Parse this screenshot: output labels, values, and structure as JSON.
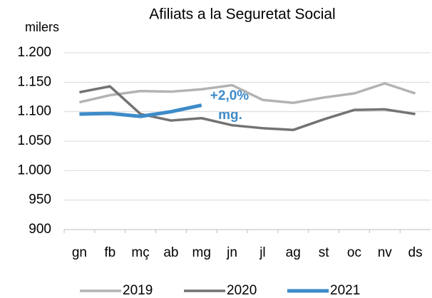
{
  "chart_data": {
    "type": "line",
    "title": "Afiliats a la Seguretat Social",
    "unit_label": "milers",
    "annotations": [
      "+2,0%",
      "mg."
    ],
    "categories": [
      "gn",
      "fb",
      "mç",
      "ab",
      "mg",
      "jn",
      "jl",
      "ag",
      "st",
      "oc",
      "nv",
      "ds"
    ],
    "series": [
      {
        "name": "2019",
        "color": "#b3b3b3",
        "values": [
          1116,
          1128,
          1135,
          1134,
          1138,
          1145,
          1120,
          1115,
          1124,
          1131,
          1148,
          1131
        ]
      },
      {
        "name": "2020",
        "color": "#737373",
        "values": [
          1133,
          1143,
          1096,
          1085,
          1089,
          1077,
          1072,
          1069,
          1087,
          1103,
          1104,
          1096
        ]
      },
      {
        "name": "2021",
        "color": "#3d8bc9",
        "values": [
          1096,
          1097,
          1092,
          1100,
          1111,
          null,
          null,
          null,
          null,
          null,
          null,
          null
        ]
      }
    ],
    "ylim": [
      900,
      1200
    ],
    "yticks": [
      {
        "value": 1200,
        "label": "1.200"
      },
      {
        "value": 1150,
        "label": "1.150"
      },
      {
        "value": 1100,
        "label": "1.100"
      },
      {
        "value": 1050,
        "label": "1.050"
      },
      {
        "value": 1000,
        "label": "1.000"
      },
      950,
      900
    ],
    "grid": true,
    "legend": "bottom"
  }
}
